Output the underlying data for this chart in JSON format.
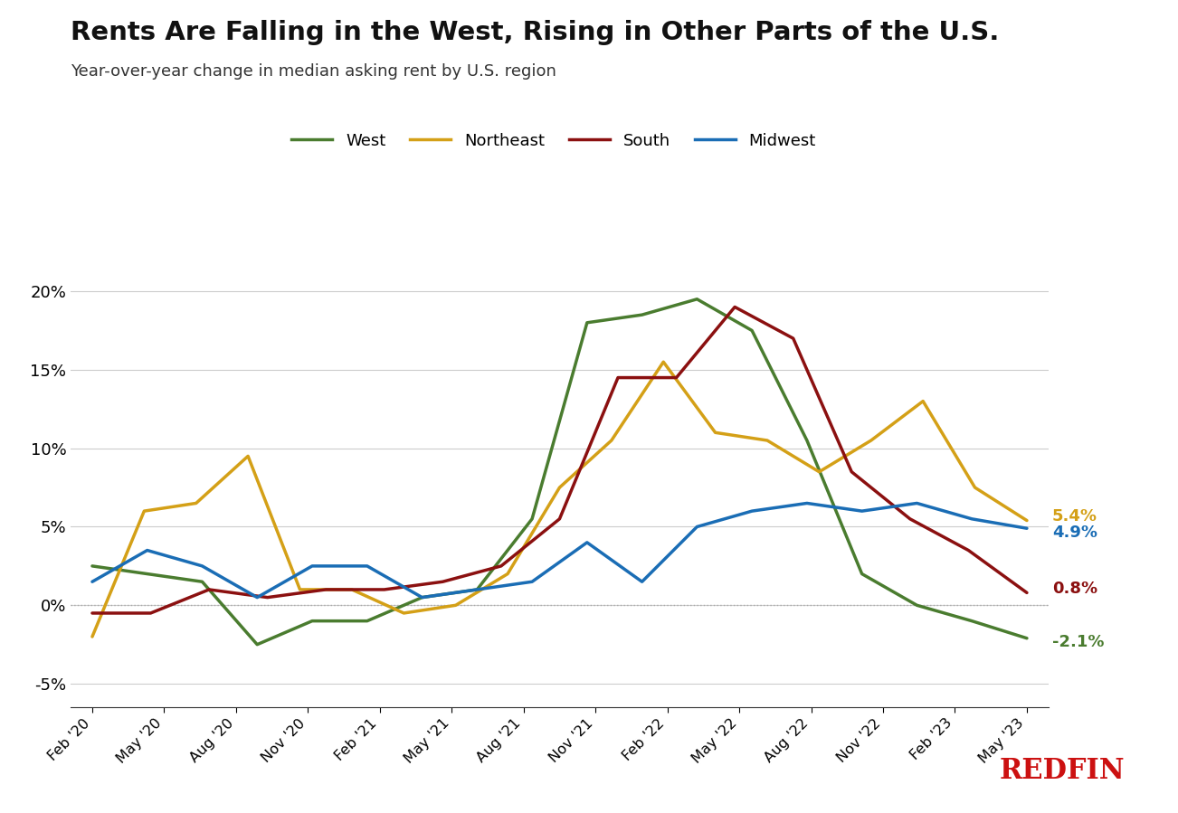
{
  "title": "Rents Are Falling in the West, Rising in Other Parts of the U.S.",
  "subtitle": "Year-over-year change in median asking rent by U.S. region",
  "title_fontsize": 21,
  "subtitle_fontsize": 13,
  "background_color": "#ffffff",
  "grid_color": "#cccccc",
  "zero_line_color": "#aaaaaa",
  "line_width": 2.5,
  "colors": {
    "West": "#4a7c2f",
    "Northeast": "#d4a017",
    "South": "#8b1010",
    "Midwest": "#1a6db5"
  },
  "end_label_colors": {
    "Northeast": "#d4a017",
    "Midwest": "#1a6db5",
    "South": "#8b1010",
    "West": "#4a7c2f"
  },
  "ylim": [
    -6.5,
    22.5
  ],
  "yticks": [
    -5,
    0,
    5,
    10,
    15,
    20
  ],
  "x_labels": [
    "Feb '20",
    "May '20",
    "Aug '20",
    "Nov '20",
    "Feb '21",
    "May '21",
    "Aug '21",
    "Nov '21",
    "Feb '22",
    "May '22",
    "Aug '22",
    "Nov '22",
    "Feb '23",
    "May '23"
  ],
  "West": [
    2.5,
    2.0,
    1.5,
    -2.5,
    -1.0,
    -1.0,
    0.5,
    1.0,
    5.5,
    18.0,
    18.5,
    19.5,
    17.5,
    10.5,
    2.0,
    0.0,
    -1.0,
    -2.1
  ],
  "Northeast": [
    -2.0,
    6.0,
    6.5,
    9.5,
    1.0,
    1.0,
    -0.5,
    0.0,
    2.0,
    7.5,
    10.5,
    15.5,
    11.0,
    10.5,
    8.5,
    10.5,
    13.0,
    7.5,
    5.4
  ],
  "South": [
    -0.5,
    -0.5,
    1.0,
    0.5,
    1.0,
    1.0,
    1.5,
    2.5,
    5.5,
    14.5,
    14.5,
    19.0,
    17.0,
    8.5,
    5.5,
    3.5,
    0.8
  ],
  "Midwest": [
    1.5,
    3.5,
    2.5,
    0.5,
    2.5,
    2.5,
    0.5,
    1.0,
    1.5,
    4.0,
    1.5,
    5.0,
    6.0,
    6.5,
    6.0,
    6.5,
    5.5,
    4.9
  ],
  "end_labels": {
    "Northeast": "5.4%",
    "Midwest": "4.9%",
    "South": "0.8%",
    "West": "-2.1%"
  },
  "redfin_color": "#cc1111"
}
